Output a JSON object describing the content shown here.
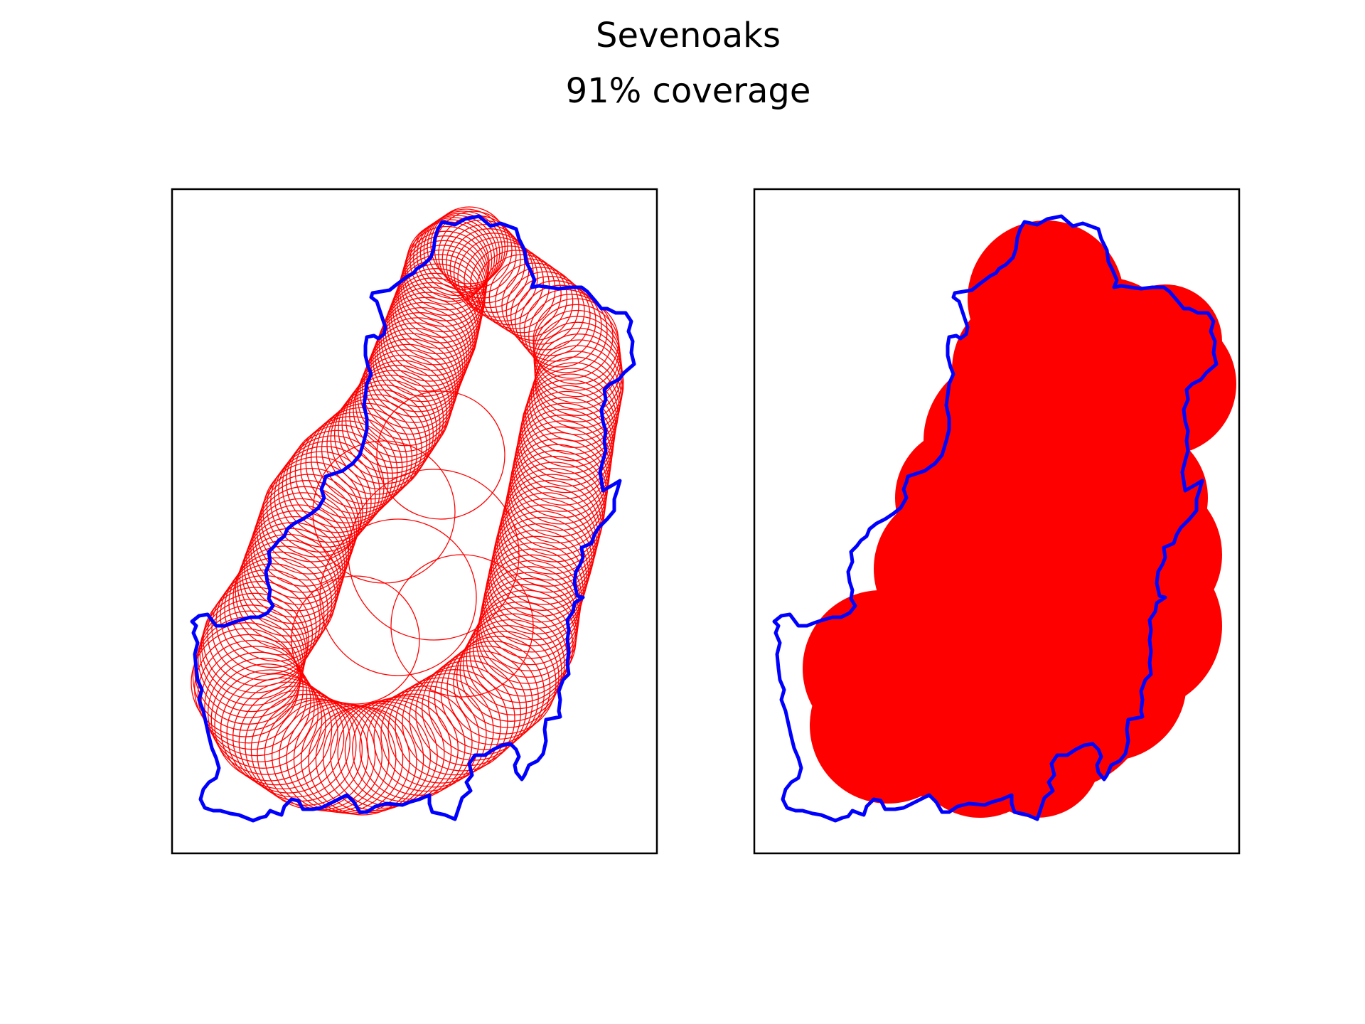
{
  "figure": {
    "title": "Sevenoaks",
    "subtitle": "91% coverage"
  },
  "colors": {
    "boundary": "#0000ff",
    "coverage": "#ff0000",
    "frame": "#000000",
    "background": "#ffffff"
  },
  "panels": [
    {
      "name": "outline-circles",
      "style": "outline"
    },
    {
      "name": "filled-coverage",
      "style": "filled"
    }
  ]
}
